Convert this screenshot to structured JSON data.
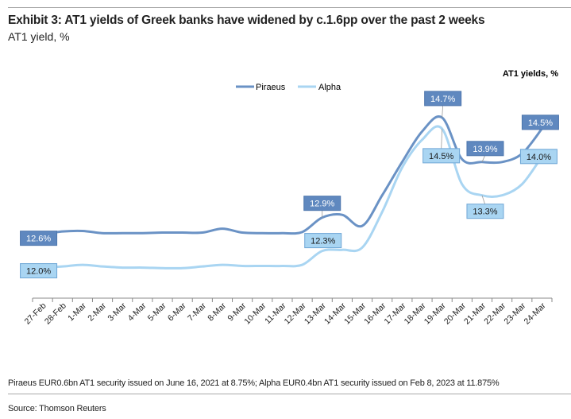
{
  "title": "Exhibit 3: AT1 yields of Greek banks have widened by c.1.6pp over the past 2 weeks",
  "subtitle": "AT1 yield, %",
  "footnote": "Piraeus EUR0.6bn AT1 security issued on June 16, 2021 at 8.75%; Alpha EUR0.4bn AT1 security issued on Feb 8, 2023 at 11.875%",
  "source": "Source: Thomson Reuters",
  "chart_data": {
    "type": "line",
    "title": "AT1 yields, %",
    "xlabel": "",
    "ylabel": "",
    "ylim": [
      11.45,
      15.6
    ],
    "grid": false,
    "legend_position": "top-center",
    "categories": [
      "27-Feb",
      "28-Feb",
      "1-Mar",
      "2-Mar",
      "3-Mar",
      "4-Mar",
      "5-Mar",
      "6-Mar",
      "7-Mar",
      "8-Mar",
      "9-Mar",
      "10-Mar",
      "11-Mar",
      "12-Mar",
      "13-Mar",
      "14-Mar",
      "15-Mar",
      "16-Mar",
      "17-Mar",
      "18-Mar",
      "19-Mar",
      "20-Mar",
      "21-Mar",
      "22-Mar",
      "23-Mar",
      "24-Mar"
    ],
    "series": [
      {
        "name": "Piraeus",
        "color": "#6a92c5",
        "label_fill": "#5f88bf",
        "label_text": "#ffffff",
        "values": [
          12.6,
          12.65,
          12.66,
          12.62,
          12.62,
          12.62,
          12.63,
          12.63,
          12.63,
          12.7,
          12.63,
          12.62,
          12.62,
          12.64,
          12.9,
          12.95,
          12.75,
          13.3,
          13.9,
          14.45,
          14.7,
          13.95,
          13.9,
          13.9,
          14.05,
          14.5
        ],
        "labels": [
          {
            "index": 0,
            "text": "12.6%"
          },
          {
            "index": 14,
            "text": "12.9%"
          },
          {
            "index": 20,
            "text": "14.7%"
          },
          {
            "index": 22,
            "text": "13.9%"
          },
          {
            "index": 25,
            "text": "14.5%"
          }
        ]
      },
      {
        "name": "Alpha",
        "color": "#a9d5f2",
        "label_fill": "#a9d5f2",
        "label_text": "#1a1a1a",
        "values": [
          12.0,
          12.02,
          12.05,
          12.02,
          12.0,
          12.0,
          11.99,
          11.99,
          12.02,
          12.05,
          12.03,
          12.03,
          12.03,
          12.05,
          12.3,
          12.32,
          12.36,
          13.0,
          13.8,
          14.3,
          14.5,
          13.5,
          13.3,
          13.3,
          13.5,
          14.0
        ],
        "labels": [
          {
            "index": 0,
            "text": "12.0%"
          },
          {
            "index": 14,
            "text": "12.3%"
          },
          {
            "index": 20,
            "text": "14.5%"
          },
          {
            "index": 22,
            "text": "13.3%"
          },
          {
            "index": 25,
            "text": "14.0%"
          }
        ]
      }
    ]
  }
}
